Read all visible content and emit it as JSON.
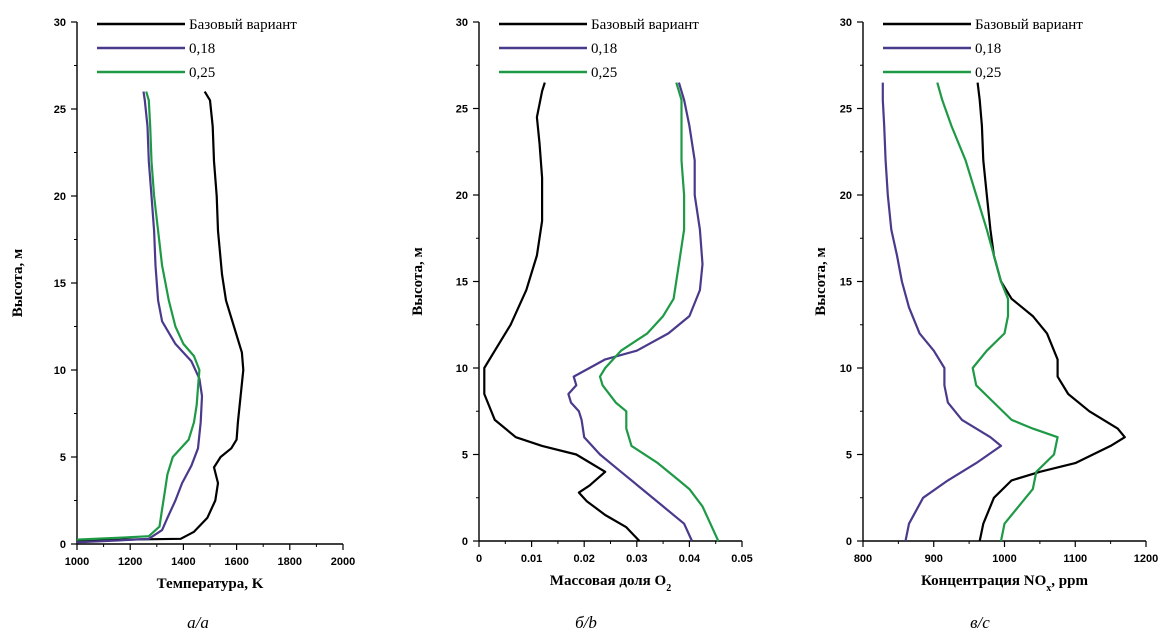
{
  "chart_data": [
    {
      "type": "line",
      "caption": "а/a",
      "xlabel": "Температура, K",
      "ylabel": "Высота, м",
      "xlim": [
        1000,
        2000
      ],
      "ylim": [
        0,
        30
      ],
      "x_ticks": [
        1000,
        1200,
        1400,
        1600,
        1800,
        2000
      ],
      "y_ticks": [
        0,
        5,
        10,
        15,
        20,
        25,
        30
      ],
      "legend_position": "top-left",
      "series": [
        {
          "name": "Базовый вариант",
          "color": "#000000",
          "points": [
            [
              1000,
              0.2
            ],
            [
              1180,
              0.25
            ],
            [
              1390,
              0.3
            ],
            [
              1440,
              0.7
            ],
            [
              1490,
              1.5
            ],
            [
              1520,
              2.5
            ],
            [
              1530,
              3.5
            ],
            [
              1515,
              4.4
            ],
            [
              1540,
              5.0
            ],
            [
              1580,
              5.5
            ],
            [
              1600,
              6.0
            ],
            [
              1605,
              7.0
            ],
            [
              1615,
              8.5
            ],
            [
              1625,
              10.0
            ],
            [
              1620,
              11.0
            ],
            [
              1600,
              12.0
            ],
            [
              1580,
              13.0
            ],
            [
              1560,
              14.0
            ],
            [
              1545,
              15.5
            ],
            [
              1530,
              18.0
            ],
            [
              1525,
              20.0
            ],
            [
              1515,
              22.0
            ],
            [
              1510,
              24.0
            ],
            [
              1500,
              25.5
            ],
            [
              1480,
              26.0
            ]
          ]
        },
        {
          "name": "0,18",
          "color": "#4b3a8c",
          "points": [
            [
              1000,
              0.1
            ],
            [
              1150,
              0.2
            ],
            [
              1270,
              0.3
            ],
            [
              1320,
              0.8
            ],
            [
              1340,
              1.5
            ],
            [
              1370,
              2.5
            ],
            [
              1395,
              3.5
            ],
            [
              1430,
              4.5
            ],
            [
              1455,
              5.5
            ],
            [
              1465,
              7.0
            ],
            [
              1470,
              8.5
            ],
            [
              1460,
              9.5
            ],
            [
              1430,
              10.5
            ],
            [
              1370,
              11.5
            ],
            [
              1320,
              12.8
            ],
            [
              1305,
              14.0
            ],
            [
              1295,
              16.0
            ],
            [
              1290,
              18.0
            ],
            [
              1280,
              20.0
            ],
            [
              1270,
              22.0
            ],
            [
              1265,
              24.0
            ],
            [
              1255,
              25.5
            ],
            [
              1250,
              26.0
            ]
          ]
        },
        {
          "name": "0,25",
          "color": "#1e9a46",
          "points": [
            [
              1000,
              0.25
            ],
            [
              1150,
              0.35
            ],
            [
              1270,
              0.45
            ],
            [
              1310,
              1.0
            ],
            [
              1320,
              2.0
            ],
            [
              1330,
              3.0
            ],
            [
              1340,
              4.0
            ],
            [
              1360,
              5.0
            ],
            [
              1420,
              6.0
            ],
            [
              1440,
              7.0
            ],
            [
              1450,
              8.0
            ],
            [
              1455,
              9.0
            ],
            [
              1460,
              10.0
            ],
            [
              1440,
              10.8
            ],
            [
              1400,
              11.5
            ],
            [
              1370,
              12.5
            ],
            [
              1345,
              14.0
            ],
            [
              1320,
              16.0
            ],
            [
              1305,
              18.0
            ],
            [
              1290,
              20.0
            ],
            [
              1280,
              22.0
            ],
            [
              1275,
              24.0
            ],
            [
              1270,
              25.5
            ],
            [
              1260,
              26.0
            ]
          ]
        }
      ]
    },
    {
      "type": "line",
      "caption": "б/b",
      "xlabel": "Массовая доля O",
      "xlabel_sub": "2",
      "ylabel": "Высота, м",
      "xlim": [
        0,
        0.05
      ],
      "ylim": [
        0,
        30
      ],
      "x_ticks": [
        "0",
        "0.01",
        "0.02",
        "0.03",
        "0.04",
        "0.05"
      ],
      "y_ticks": [
        0,
        5,
        10,
        15,
        20,
        25,
        30
      ],
      "legend_position": "top-left",
      "series": [
        {
          "name": "Базовый вариант",
          "color": "#000000",
          "points": [
            [
              0.0305,
              0.0
            ],
            [
              0.028,
              0.8
            ],
            [
              0.024,
              1.5
            ],
            [
              0.0205,
              2.3
            ],
            [
              0.019,
              2.8
            ],
            [
              0.021,
              3.2
            ],
            [
              0.024,
              4.0
            ],
            [
              0.0185,
              5.0
            ],
            [
              0.012,
              5.5
            ],
            [
              0.007,
              6.0
            ],
            [
              0.003,
              7.0
            ],
            [
              0.001,
              8.5
            ],
            [
              0.001,
              10.0
            ],
            [
              0.003,
              11.0
            ],
            [
              0.006,
              12.5
            ],
            [
              0.009,
              14.5
            ],
            [
              0.011,
              16.5
            ],
            [
              0.012,
              18.5
            ],
            [
              0.012,
              21.0
            ],
            [
              0.0115,
              23.0
            ],
            [
              0.011,
              24.5
            ],
            [
              0.012,
              26.0
            ],
            [
              0.0125,
              26.5
            ]
          ]
        },
        {
          "name": "0,18",
          "color": "#4b3a8c",
          "points": [
            [
              0.0405,
              0.0
            ],
            [
              0.039,
              1.0
            ],
            [
              0.035,
              2.0
            ],
            [
              0.031,
              3.0
            ],
            [
              0.027,
              4.0
            ],
            [
              0.023,
              5.0
            ],
            [
              0.02,
              6.0
            ],
            [
              0.0195,
              7.0
            ],
            [
              0.019,
              7.5
            ],
            [
              0.0175,
              8.0
            ],
            [
              0.017,
              8.5
            ],
            [
              0.0185,
              9.0
            ],
            [
              0.018,
              9.5
            ],
            [
              0.021,
              10.0
            ],
            [
              0.024,
              10.5
            ],
            [
              0.03,
              11.0
            ],
            [
              0.036,
              12.0
            ],
            [
              0.04,
              13.0
            ],
            [
              0.042,
              14.5
            ],
            [
              0.0425,
              16.0
            ],
            [
              0.042,
              18.0
            ],
            [
              0.041,
              20.0
            ],
            [
              0.041,
              22.0
            ],
            [
              0.04,
              24.0
            ],
            [
              0.039,
              25.5
            ],
            [
              0.038,
              26.5
            ]
          ]
        },
        {
          "name": "0,25",
          "color": "#1e9a46",
          "points": [
            [
              0.0455,
              0.0
            ],
            [
              0.044,
              1.0
            ],
            [
              0.0425,
              2.0
            ],
            [
              0.04,
              3.0
            ],
            [
              0.038,
              3.5
            ],
            [
              0.034,
              4.5
            ],
            [
              0.029,
              5.5
            ],
            [
              0.028,
              6.5
            ],
            [
              0.028,
              7.5
            ],
            [
              0.026,
              8.0
            ],
            [
              0.0235,
              9.0
            ],
            [
              0.023,
              9.5
            ],
            [
              0.024,
              10.0
            ],
            [
              0.027,
              11.0
            ],
            [
              0.032,
              12.0
            ],
            [
              0.035,
              13.0
            ],
            [
              0.037,
              14.0
            ],
            [
              0.038,
              16.0
            ],
            [
              0.039,
              18.0
            ],
            [
              0.039,
              20.0
            ],
            [
              0.0385,
              22.0
            ],
            [
              0.0385,
              24.0
            ],
            [
              0.0385,
              25.5
            ],
            [
              0.0375,
              26.5
            ]
          ]
        }
      ]
    },
    {
      "type": "line",
      "caption": "в/c",
      "xlabel": "Концентрация NO",
      "xlabel_sub": "x",
      "xlabel_suffix": ", ppm",
      "ylabel": "Высота, м",
      "xlim": [
        800,
        1200
      ],
      "ylim": [
        0,
        30
      ],
      "x_ticks": [
        800,
        900,
        1000,
        1100,
        1200
      ],
      "y_ticks": [
        0,
        5,
        10,
        15,
        20,
        25,
        30
      ],
      "legend_position": "top-left",
      "series": [
        {
          "name": "Базовый вариант",
          "color": "#000000",
          "points": [
            [
              965,
              0.0
            ],
            [
              970,
              1.0
            ],
            [
              985,
              2.5
            ],
            [
              1010,
              3.5
            ],
            [
              1050,
              4.0
            ],
            [
              1100,
              4.5
            ],
            [
              1150,
              5.5
            ],
            [
              1170,
              6.0
            ],
            [
              1160,
              6.5
            ],
            [
              1120,
              7.5
            ],
            [
              1090,
              8.5
            ],
            [
              1075,
              9.5
            ],
            [
              1075,
              10.5
            ],
            [
              1060,
              12.0
            ],
            [
              1040,
              13.0
            ],
            [
              1010,
              14.0
            ],
            [
              995,
              15.0
            ],
            [
              985,
              16.5
            ],
            [
              980,
              18.0
            ],
            [
              975,
              20.0
            ],
            [
              970,
              22.0
            ],
            [
              968,
              24.0
            ],
            [
              965,
              25.5
            ],
            [
              962,
              26.5
            ]
          ]
        },
        {
          "name": "0,18",
          "color": "#4b3a8c",
          "points": [
            [
              860,
              0.0
            ],
            [
              865,
              1.0
            ],
            [
              885,
              2.5
            ],
            [
              920,
              3.5
            ],
            [
              960,
              4.5
            ],
            [
              995,
              5.5
            ],
            [
              980,
              6.0
            ],
            [
              940,
              7.0
            ],
            [
              920,
              8.0
            ],
            [
              915,
              9.0
            ],
            [
              915,
              10.0
            ],
            [
              900,
              11.0
            ],
            [
              880,
              12.0
            ],
            [
              865,
              13.5
            ],
            [
              855,
              15.0
            ],
            [
              848,
              16.5
            ],
            [
              840,
              18.0
            ],
            [
              835,
              20.0
            ],
            [
              832,
              22.0
            ],
            [
              830,
              24.0
            ],
            [
              828,
              25.5
            ],
            [
              828,
              26.5
            ]
          ]
        },
        {
          "name": "0,25",
          "color": "#1e9a46",
          "points": [
            [
              995,
              0.0
            ],
            [
              1000,
              1.0
            ],
            [
              1020,
              2.0
            ],
            [
              1040,
              3.0
            ],
            [
              1045,
              4.0
            ],
            [
              1070,
              5.0
            ],
            [
              1075,
              6.0
            ],
            [
              1040,
              6.5
            ],
            [
              1010,
              7.0
            ],
            [
              985,
              8.0
            ],
            [
              960,
              9.0
            ],
            [
              955,
              10.0
            ],
            [
              975,
              11.0
            ],
            [
              1000,
              12.0
            ],
            [
              1005,
              13.0
            ],
            [
              1005,
              14.0
            ],
            [
              995,
              15.0
            ],
            [
              985,
              16.5
            ],
            [
              975,
              18.0
            ],
            [
              960,
              20.0
            ],
            [
              945,
              22.0
            ],
            [
              925,
              24.0
            ],
            [
              912,
              25.5
            ],
            [
              905,
              26.5
            ]
          ]
        }
      ]
    }
  ]
}
